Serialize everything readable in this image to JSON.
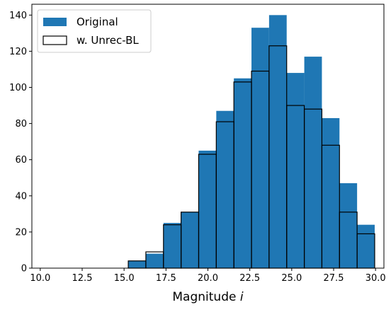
{
  "chart_data": {
    "type": "bar",
    "title": "",
    "xlabel": "Magnitude",
    "xlabel_math_var": "i",
    "ylabel": "",
    "xlim": [
      9.5,
      30.5
    ],
    "ylim": [
      0,
      146
    ],
    "xticks": [
      10.0,
      12.5,
      15.0,
      17.5,
      20.0,
      22.5,
      25.0,
      27.5,
      30.0
    ],
    "xtick_labels": [
      "10.0",
      "12.5",
      "15.0",
      "17.5",
      "20.0",
      "22.5",
      "25.0",
      "27.5",
      "30.0"
    ],
    "yticks": [
      0,
      20,
      40,
      60,
      80,
      100,
      120,
      140
    ],
    "ytick_labels": [
      "0",
      "20",
      "40",
      "60",
      "80",
      "100",
      "120",
      "140"
    ],
    "bin_edges": [
      10.0,
      11.05,
      12.1,
      13.15,
      14.2,
      15.25,
      16.3,
      17.35,
      18.4,
      19.45,
      20.5,
      21.55,
      22.6,
      23.65,
      24.7,
      25.75,
      26.8,
      27.85,
      28.9,
      29.95
    ],
    "bin_start": 10.0,
    "bin_width": 1.05,
    "legend": {
      "location": "upper-left"
    },
    "series": [
      {
        "name": "Original",
        "style": "filled",
        "color": "#1f77b4",
        "values": [
          0,
          0,
          0,
          0,
          0,
          4,
          8,
          25,
          31,
          65,
          87,
          105,
          133,
          140,
          108,
          117,
          83,
          47,
          24
        ]
      },
      {
        "name": "w. Unrec-BL",
        "style": "outline",
        "color": "#000000",
        "values": [
          0,
          0,
          0,
          0,
          0,
          4,
          9,
          24,
          31,
          63,
          81,
          103,
          109,
          123,
          90,
          88,
          68,
          31,
          19
        ]
      }
    ]
  }
}
